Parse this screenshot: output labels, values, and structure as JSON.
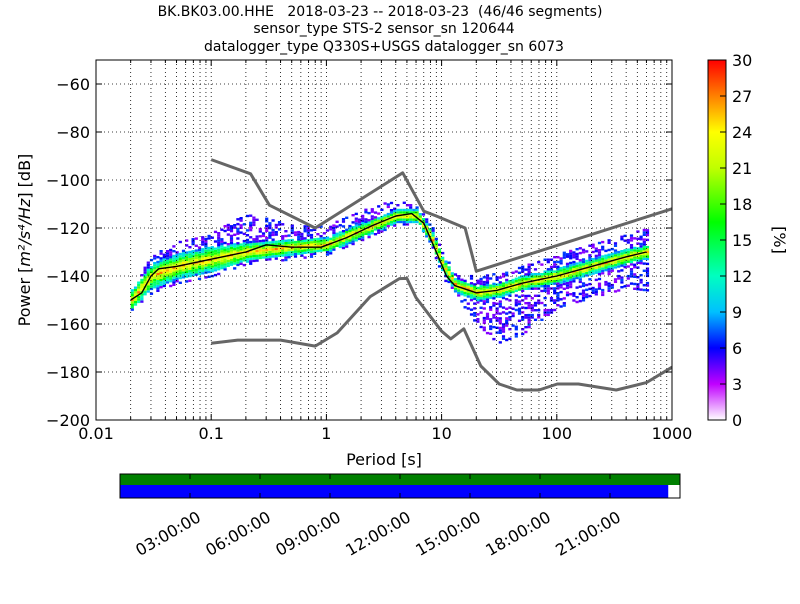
{
  "title_lines": [
    "BK.BK03.00.HHE   2018-03-23 -- 2018-03-23  (46/46 segments)",
    "sensor_type STS-2 sensor_sn 120644",
    "datalogger_type Q330S+USGS datalogger_sn 6073"
  ],
  "colors": {
    "noise_model": "#666666",
    "mode_line": "#000000",
    "coverage_top": "#008000",
    "coverage_bottom": "#0000ff",
    "grid": "#000000"
  },
  "chart_data": {
    "type": "heatmap",
    "xscale": "log",
    "xlabel": "Period [s]",
    "ylabel_prefix": "Power [",
    "ylabel_math": "m²/s⁴/Hz",
    "ylabel_suffix": "] [dB]",
    "xlim": [
      0.01,
      1000
    ],
    "ylim": [
      -200,
      -50
    ],
    "x_ticks": [
      {
        "value": 0.01,
        "label": "0.01"
      },
      {
        "value": 0.1,
        "label": "0.1"
      },
      {
        "value": 1,
        "label": "1"
      },
      {
        "value": 10,
        "label": "10"
      },
      {
        "value": 100,
        "label": "100"
      },
      {
        "value": 1000,
        "label": "1000"
      }
    ],
    "y_ticks": [
      {
        "value": -60,
        "label": "−60"
      },
      {
        "value": -80,
        "label": "−80"
      },
      {
        "value": -100,
        "label": "−100"
      },
      {
        "value": -120,
        "label": "−120"
      },
      {
        "value": -140,
        "label": "−140"
      },
      {
        "value": -160,
        "label": "−160"
      },
      {
        "value": -180,
        "label": "−180"
      },
      {
        "value": -200,
        "label": "−200"
      }
    ],
    "colorbar": {
      "label": "[%]",
      "min": 0,
      "max": 30,
      "ticks": [
        "0",
        "3",
        "6",
        "9",
        "12",
        "15",
        "18",
        "21",
        "24",
        "27",
        "30"
      ]
    },
    "new_high_noise_model": [
      [
        0.1,
        -91.5
      ],
      [
        0.22,
        -97.4
      ],
      [
        0.32,
        -110.5
      ],
      [
        0.8,
        -120
      ],
      [
        4.6,
        -97
      ],
      [
        7,
        -113
      ],
      [
        9,
        -115
      ],
      [
        16,
        -120
      ],
      [
        20,
        -138
      ],
      [
        1000,
        -112
      ]
    ],
    "new_low_noise_model": [
      [
        0.1,
        -168
      ],
      [
        0.17,
        -166.7
      ],
      [
        0.4,
        -166.7
      ],
      [
        0.8,
        -169.2
      ],
      [
        1.24,
        -163.7
      ],
      [
        2.4,
        -148.6
      ],
      [
        4.3,
        -141.1
      ],
      [
        5,
        -141
      ],
      [
        6,
        -149
      ],
      [
        10,
        -163
      ],
      [
        12,
        -166.2
      ],
      [
        15.6,
        -162
      ],
      [
        21.9,
        -177.5
      ],
      [
        31.6,
        -185
      ],
      [
        45,
        -187.5
      ],
      [
        70,
        -187.5
      ],
      [
        101,
        -185
      ],
      [
        154,
        -185
      ],
      [
        328,
        -187.5
      ],
      [
        600,
        -184.4
      ],
      [
        1000,
        -178
      ]
    ],
    "mode_curve": [
      [
        0.02,
        -150
      ],
      [
        0.025,
        -147
      ],
      [
        0.03,
        -140
      ],
      [
        0.035,
        -137
      ],
      [
        0.05,
        -136
      ],
      [
        0.1,
        -133
      ],
      [
        0.2,
        -130
      ],
      [
        0.3,
        -127
      ],
      [
        0.5,
        -128
      ],
      [
        0.9,
        -128
      ],
      [
        1.5,
        -124
      ],
      [
        2.5,
        -119
      ],
      [
        4,
        -115
      ],
      [
        5.5,
        -114
      ],
      [
        7,
        -118
      ],
      [
        9,
        -130
      ],
      [
        11,
        -140
      ],
      [
        13,
        -144
      ],
      [
        20,
        -147
      ],
      [
        30,
        -146
      ],
      [
        50,
        -143
      ],
      [
        100,
        -140
      ],
      [
        200,
        -136
      ],
      [
        400,
        -132
      ],
      [
        600,
        -130
      ]
    ],
    "density": [
      {
        "period": 0.02,
        "median": -150,
        "spread": 4,
        "scatter_low": 0,
        "scatter_high": 0
      },
      {
        "period": 0.03,
        "median": -140,
        "spread": 5,
        "scatter_low": 2,
        "scatter_high": 4
      },
      {
        "period": 0.05,
        "median": -136,
        "spread": 5,
        "scatter_low": 2,
        "scatter_high": 5
      },
      {
        "period": 0.1,
        "median": -133,
        "spread": 5,
        "scatter_low": 2,
        "scatter_high": 6
      },
      {
        "period": 0.2,
        "median": -130,
        "spread": 4,
        "scatter_low": 1,
        "scatter_high": 12
      },
      {
        "period": 0.5,
        "median": -128,
        "spread": 3,
        "scatter_low": 2,
        "scatter_high": 6
      },
      {
        "period": 1,
        "median": -127,
        "spread": 3,
        "scatter_low": 1,
        "scatter_high": 5
      },
      {
        "period": 2,
        "median": -121,
        "spread": 3,
        "scatter_low": 1,
        "scatter_high": 6
      },
      {
        "period": 4,
        "median": -115,
        "spread": 2.5,
        "scatter_low": 1,
        "scatter_high": 4
      },
      {
        "period": 6,
        "median": -115,
        "spread": 2.5,
        "scatter_low": 1,
        "scatter_high": 2
      },
      {
        "period": 8,
        "median": -124,
        "spread": 3,
        "scatter_low": 1,
        "scatter_high": 2
      },
      {
        "period": 10,
        "median": -135,
        "spread": 3,
        "scatter_low": 2,
        "scatter_high": 2
      },
      {
        "period": 13,
        "median": -144,
        "spread": 3,
        "scatter_low": 3,
        "scatter_high": 2
      },
      {
        "period": 20,
        "median": -147,
        "spread": 3,
        "scatter_low": 10,
        "scatter_high": 4
      },
      {
        "period": 30,
        "median": -146,
        "spread": 3,
        "scatter_low": 19,
        "scatter_high": 4
      },
      {
        "period": 50,
        "median": -143,
        "spread": 3,
        "scatter_low": 18,
        "scatter_high": 4
      },
      {
        "period": 100,
        "median": -140,
        "spread": 3,
        "scatter_low": 10,
        "scatter_high": 6
      },
      {
        "period": 200,
        "median": -136,
        "spread": 3,
        "scatter_low": 10,
        "scatter_high": 6
      },
      {
        "period": 400,
        "median": -132,
        "spread": 3,
        "scatter_low": 10,
        "scatter_high": 6
      },
      {
        "period": 600,
        "median": -130,
        "spread": 3,
        "scatter_low": 13,
        "scatter_high": 8
      }
    ],
    "coverage": {
      "tick_labels": [
        "03:00:00",
        "06:00:00",
        "09:00:00",
        "12:00:00",
        "15:00:00",
        "18:00:00",
        "21:00:00"
      ],
      "top_fraction": 1.0,
      "bottom_fraction": 0.979
    }
  }
}
